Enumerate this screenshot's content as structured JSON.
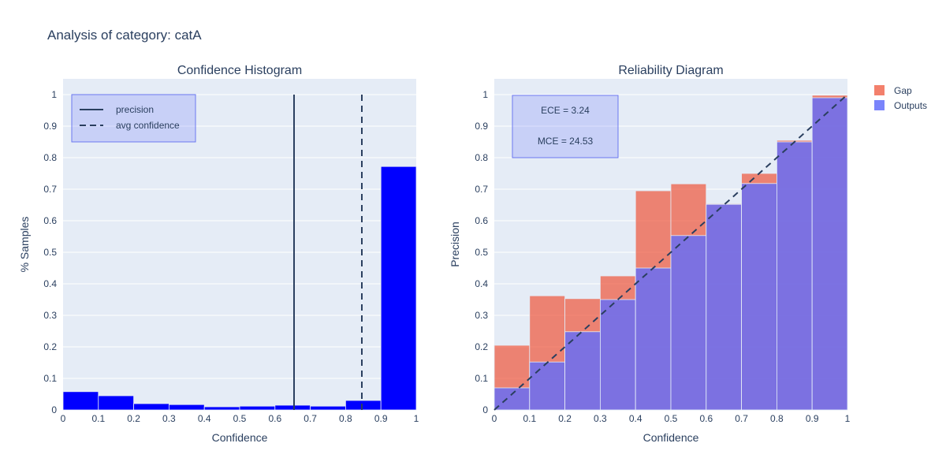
{
  "title": "Analysis of category: catA",
  "colors": {
    "histogram_bar": "#0000ff",
    "outputs": "#636efa",
    "gap": "#ef553b",
    "line": "#2a3f5f",
    "plot_bg": "#e5ecf6"
  },
  "chart_data": [
    {
      "type": "bar",
      "title": "Confidence Histogram",
      "xlabel": "Confidence",
      "ylabel": "% Samples",
      "xlim": [
        0,
        1
      ],
      "ylim": [
        0,
        1.05
      ],
      "x_ticks": [
        "0",
        "0.1",
        "0.2",
        "0.3",
        "0.4",
        "0.5",
        "0.6",
        "0.7",
        "0.8",
        "0.9",
        "1"
      ],
      "y_ticks": [
        "0",
        "0.1",
        "0.2",
        "0.3",
        "0.4",
        "0.5",
        "0.6",
        "0.7",
        "0.8",
        "0.9",
        "1"
      ],
      "bins": [
        [
          0,
          0.1
        ],
        [
          0.1,
          0.2
        ],
        [
          0.2,
          0.3
        ],
        [
          0.3,
          0.4
        ],
        [
          0.4,
          0.5
        ],
        [
          0.5,
          0.6
        ],
        [
          0.6,
          0.7
        ],
        [
          0.7,
          0.8
        ],
        [
          0.8,
          0.9
        ],
        [
          0.9,
          1.0
        ]
      ],
      "values": [
        0.058,
        0.045,
        0.02,
        0.017,
        0.01,
        0.012,
        0.015,
        0.012,
        0.03,
        0.772
      ],
      "lines": [
        {
          "name": "precision",
          "x": 0.654,
          "style": "solid"
        },
        {
          "name": "avg confidence",
          "x": 0.846,
          "style": "dash"
        }
      ],
      "legend": [
        "precision",
        "avg confidence"
      ],
      "legend_position": "top-left",
      "grid": true
    },
    {
      "type": "bar",
      "title": "Reliability Diagram",
      "xlabel": "Confidence",
      "ylabel": "Precision",
      "xlim": [
        0,
        1
      ],
      "ylim": [
        0,
        1.05
      ],
      "x_ticks": [
        "0",
        "0.1",
        "0.2",
        "0.3",
        "0.4",
        "0.5",
        "0.6",
        "0.7",
        "0.8",
        "0.9",
        "1"
      ],
      "y_ticks": [
        "0",
        "0.1",
        "0.2",
        "0.3",
        "0.4",
        "0.5",
        "0.6",
        "0.7",
        "0.8",
        "0.9",
        "1"
      ],
      "bins": [
        [
          0,
          0.1
        ],
        [
          0.1,
          0.2
        ],
        [
          0.2,
          0.3
        ],
        [
          0.3,
          0.4
        ],
        [
          0.4,
          0.5
        ],
        [
          0.5,
          0.6
        ],
        [
          0.6,
          0.7
        ],
        [
          0.7,
          0.8
        ],
        [
          0.8,
          0.9
        ],
        [
          0.9,
          1.0
        ]
      ],
      "series": [
        {
          "name": "Outputs",
          "values": [
            0.07,
            0.152,
            0.248,
            0.35,
            0.45,
            0.553,
            0.652,
            0.718,
            0.85,
            0.99
          ]
        },
        {
          "name": "Gap",
          "values": [
            0.205,
            0.362,
            0.353,
            0.425,
            0.695,
            0.717,
            0.654,
            0.75,
            0.855,
            0.998
          ]
        }
      ],
      "diagonal": {
        "style": "dash",
        "from": [
          0,
          0
        ],
        "to": [
          1,
          1
        ]
      },
      "annotation": [
        "ECE = 3.24",
        "MCE = 24.53"
      ],
      "legend": [
        "Gap",
        "Outputs"
      ],
      "legend_position": "right",
      "grid": true
    }
  ]
}
